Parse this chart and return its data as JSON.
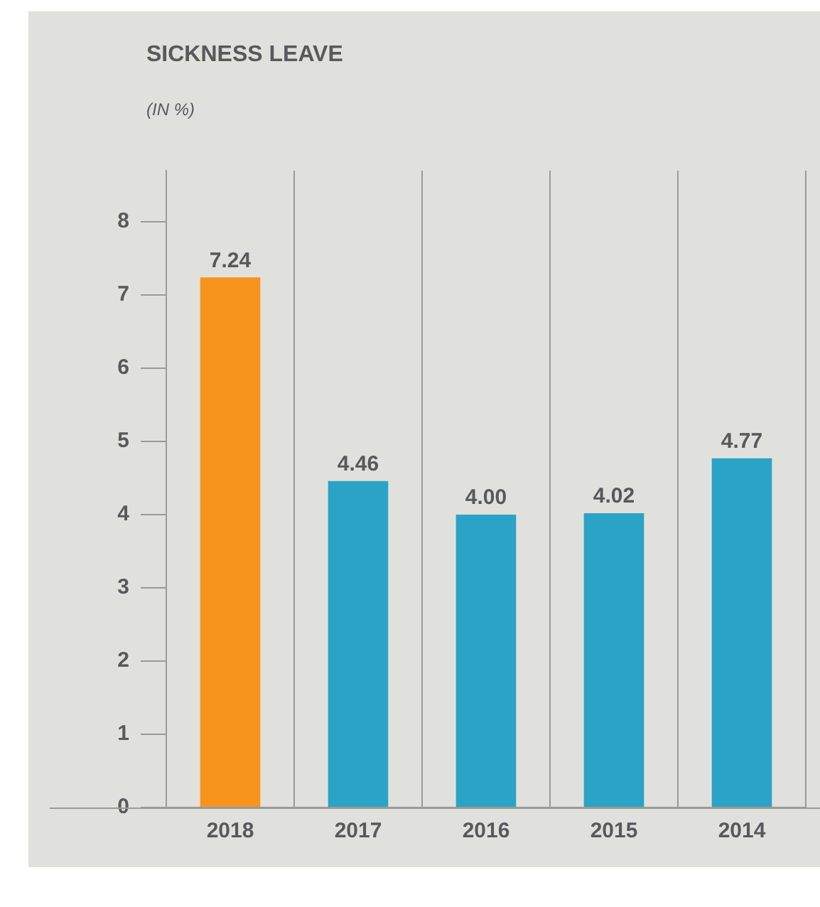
{
  "chart_data": {
    "type": "bar",
    "title": "SICKNESS LEAVE",
    "subtitle": "(IN %)",
    "categories": [
      "2018",
      "2017",
      "2016",
      "2015",
      "2014"
    ],
    "values": [
      7.24,
      4.46,
      4.0,
      4.02,
      4.77
    ],
    "colors": [
      "#f7941d",
      "#2ba3c6",
      "#2ba3c6",
      "#2ba3c6",
      "#2ba3c6"
    ],
    "value_labels": [
      "7.24",
      "4.46",
      "4.00",
      "4.02",
      "4.77"
    ],
    "ylim": [
      0,
      8.7
    ],
    "yticks": [
      0,
      1,
      2,
      3,
      4,
      5,
      6,
      7,
      8
    ],
    "grid": "x",
    "legend": false
  }
}
